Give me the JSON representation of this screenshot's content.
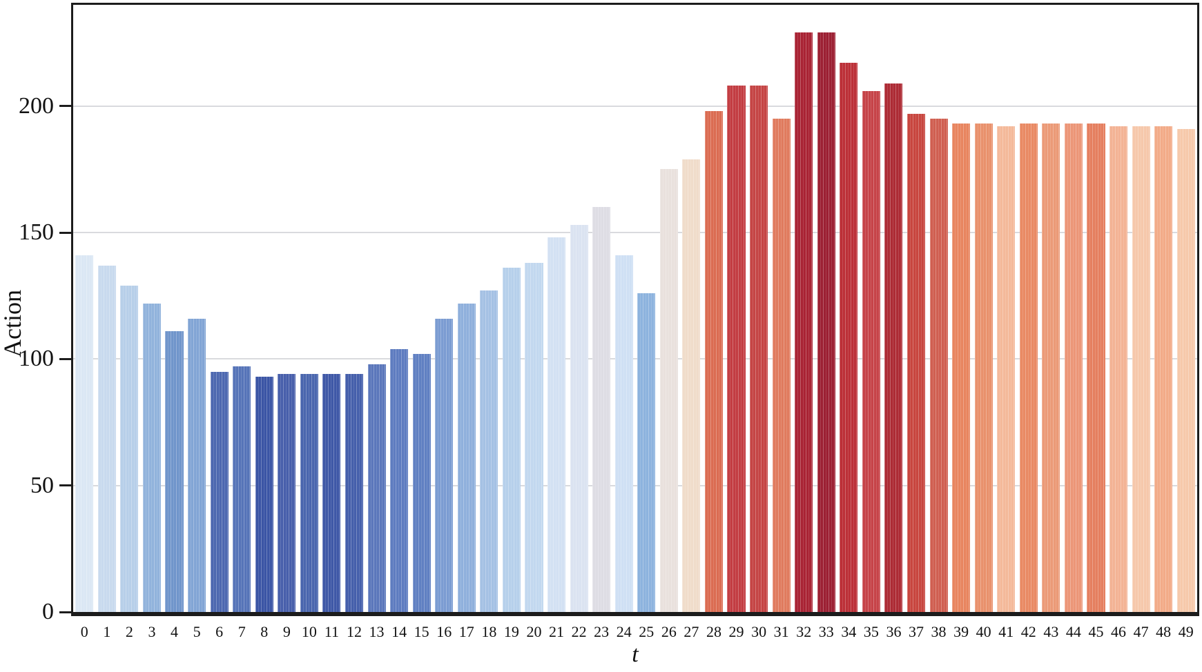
{
  "chart_data": {
    "type": "bar",
    "title": "",
    "xlabel": "t",
    "ylabel": "Action",
    "ylim": [
      0,
      240
    ],
    "yticks": [
      0,
      50,
      100,
      150,
      200
    ],
    "grid": true,
    "legend_position": "none",
    "categories": [
      "0",
      "1",
      "2",
      "3",
      "4",
      "5",
      "6",
      "7",
      "8",
      "9",
      "10",
      "11",
      "12",
      "13",
      "14",
      "15",
      "16",
      "17",
      "18",
      "19",
      "20",
      "21",
      "22",
      "23",
      "24",
      "25",
      "26",
      "27",
      "28",
      "29",
      "30",
      "31",
      "32",
      "33",
      "34",
      "35",
      "36",
      "37",
      "38",
      "39",
      "40",
      "41",
      "42",
      "43",
      "44",
      "45",
      "46",
      "47",
      "48",
      "49"
    ],
    "values": [
      141,
      137,
      129,
      122,
      111,
      116,
      95,
      97,
      93,
      94,
      94,
      94,
      94,
      98,
      104,
      102,
      116,
      122,
      127,
      136,
      138,
      148,
      153,
      160,
      141,
      126,
      175,
      179,
      198,
      208,
      208,
      195,
      229,
      229,
      217,
      206,
      209,
      197,
      195,
      193,
      193,
      192,
      193,
      193,
      193,
      193,
      192,
      192,
      192,
      191
    ],
    "bar_colors": [
      "#dbe7f4",
      "#c8daee",
      "#b7cfe9",
      "#91b3dc",
      "#7095cb",
      "#82a5d5",
      "#4d68b0",
      "#5674b8",
      "#3b55a5",
      "#485fab",
      "#4a66ae",
      "#3f58a7",
      "#455fab",
      "#5b77bb",
      "#5e7cc0",
      "#6080c2",
      "#7b9cd2",
      "#8fb0dc",
      "#a5c1e4",
      "#b6d0eb",
      "#c2d8ef",
      "#d3e1f3",
      "#dbe3f1",
      "#dedde4",
      "#cfe0f4",
      "#8db3de",
      "#e9e1dd",
      "#f0dcca",
      "#db6c52",
      "#c33d42",
      "#c54545",
      "#e07b5e",
      "#a92334",
      "#9c2033",
      "#bc3038",
      "#c64348",
      "#ad2b35",
      "#c8463f",
      "#d05f51",
      "#e8855f",
      "#e9916c",
      "#f4b99a",
      "#e98a64",
      "#eb9a77",
      "#ec9678",
      "#e57f5f",
      "#f3b395",
      "#f6c8ab",
      "#f2ab88",
      "#f6c9ab"
    ],
    "axis_color": "#1c1c1c",
    "gridline_color": "#d9dade"
  }
}
